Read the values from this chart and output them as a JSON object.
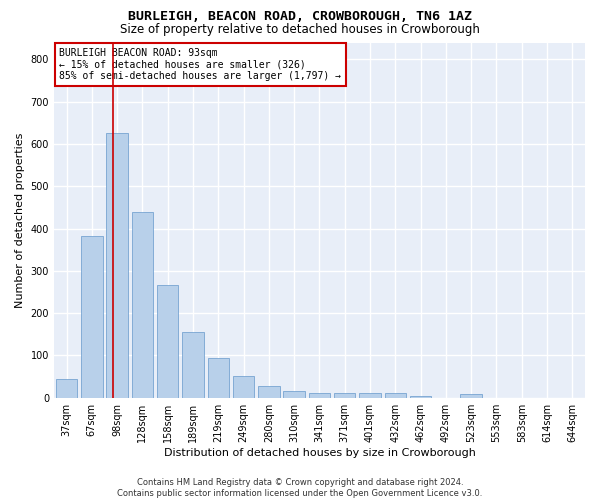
{
  "title": "BURLEIGH, BEACON ROAD, CROWBOROUGH, TN6 1AZ",
  "subtitle": "Size of property relative to detached houses in Crowborough",
  "xlabel": "Distribution of detached houses by size in Crowborough",
  "ylabel": "Number of detached properties",
  "footer_line1": "Contains HM Land Registry data © Crown copyright and database right 2024.",
  "footer_line2": "Contains public sector information licensed under the Open Government Licence v3.0.",
  "bar_labels": [
    "37sqm",
    "67sqm",
    "98sqm",
    "128sqm",
    "158sqm",
    "189sqm",
    "219sqm",
    "249sqm",
    "280sqm",
    "310sqm",
    "341sqm",
    "371sqm",
    "401sqm",
    "432sqm",
    "462sqm",
    "492sqm",
    "523sqm",
    "553sqm",
    "583sqm",
    "614sqm",
    "644sqm"
  ],
  "bar_values": [
    45,
    383,
    627,
    438,
    267,
    155,
    95,
    52,
    28,
    16,
    10,
    11,
    10,
    10,
    5,
    0,
    8,
    0,
    0,
    0,
    0
  ],
  "bar_color": "#b8d0ea",
  "bar_edge_color": "#6699cc",
  "background_color": "#e8eef8",
  "grid_color": "#ffffff",
  "annotation_text": "BURLEIGH BEACON ROAD: 93sqm\n← 15% of detached houses are smaller (326)\n85% of semi-detached houses are larger (1,797) →",
  "annotation_box_color": "#ffffff",
  "annotation_box_edge": "#cc0000",
  "vline_color": "#cc0000",
  "ylim": [
    0,
    840
  ],
  "yticks": [
    0,
    100,
    200,
    300,
    400,
    500,
    600,
    700,
    800
  ],
  "title_fontsize": 9.5,
  "subtitle_fontsize": 8.5,
  "axis_label_fontsize": 8,
  "tick_fontsize": 7,
  "annotation_fontsize": 7,
  "footer_fontsize": 6
}
